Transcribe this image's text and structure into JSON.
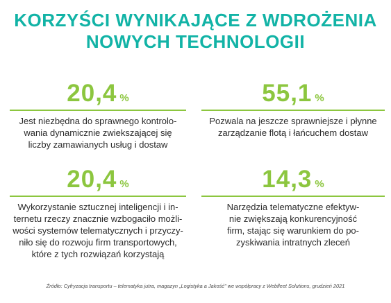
{
  "title": {
    "line1": "KORZYŚCI WYNIKAJĄCE Z WDROŻENIA",
    "line2": "NOWYCH TECHNOLOGII"
  },
  "stats": [
    {
      "value": "20,4",
      "unit": "%",
      "description": [
        "Jest niezbędna do sprawnego kontrolo-",
        "wania dynamicznie zwiekszającej się",
        "liczby zamawianych usług i dostaw"
      ]
    },
    {
      "value": "55,1",
      "unit": "%",
      "description": [
        "Pozwala na jeszcze sprawniejsze i płynne",
        "zarządzanie flotą i łańcuchem dostaw"
      ]
    },
    {
      "value": "20,4",
      "unit": "%",
      "description": [
        "Wykorzystanie sztucznej inteligencji i in-",
        "ternetu rzeczy znacznie wzbogaciło możli-",
        "wości systemów telematycznych i przyczy-",
        "niło się do rozwoju firm transportowych,",
        "które z tych rozwiązań korzystają"
      ]
    },
    {
      "value": "14,3",
      "unit": "%",
      "description": [
        "Narzędzia telematyczne efektyw-",
        "nie zwiększają konkurencyjność",
        "firm, stając się warunkiem do po-",
        "zyskiwania intratnych zleceń"
      ]
    }
  ],
  "source": "Źródło: Cyfryzacja transportu – telematyka jutra, magazyn „Logistyka a Jakość\" we współpracy z Webfleet Solutions, grudzień 2021",
  "colors": {
    "title": "#12b3a6",
    "accent_green": "#8cc63f",
    "text": "#2b2b2b"
  }
}
